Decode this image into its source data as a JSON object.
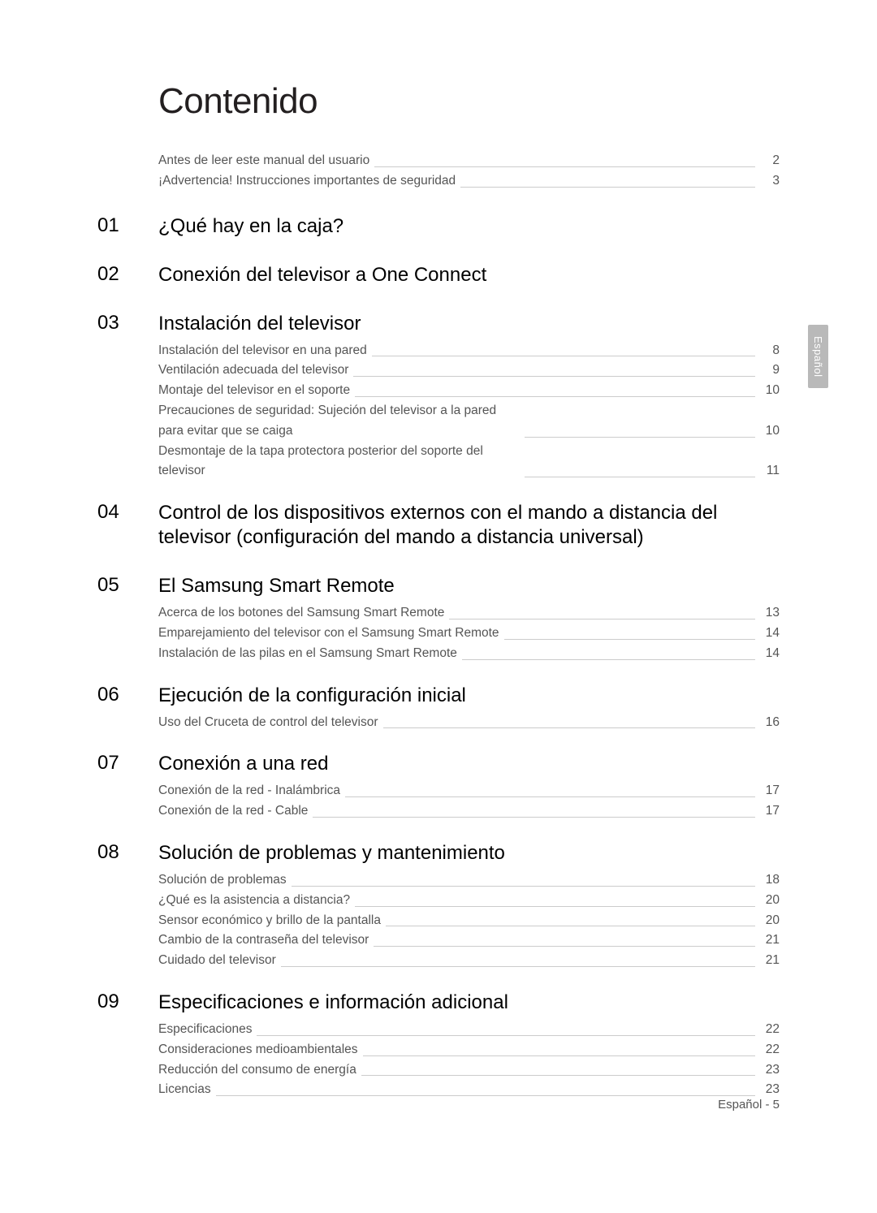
{
  "title": "Contenido",
  "side_tab": "Español",
  "footer": "Español - 5",
  "colors": {
    "text_primary": "#231f20",
    "text_secondary": "#555555",
    "leader_line": "#cccccc",
    "tab_bg": "#b9b9b9",
    "tab_text": "#ffffff",
    "background": "#ffffff"
  },
  "typography": {
    "title_fontsize": 44,
    "section_num_fontsize": 24,
    "section_title_fontsize": 24,
    "entry_fontsize": 15.5,
    "footer_fontsize": 15
  },
  "intro": [
    {
      "label": "Antes de leer este manual del usuario",
      "page": "2"
    },
    {
      "label": "¡Advertencia! Instrucciones importantes de seguridad",
      "page": "3"
    }
  ],
  "sections": [
    {
      "num": "01",
      "title": "¿Qué hay en la caja?",
      "entries": []
    },
    {
      "num": "02",
      "title": "Conexión del televisor a One Connect",
      "entries": []
    },
    {
      "num": "03",
      "title": "Instalación del televisor",
      "entries": [
        {
          "label": "Instalación del televisor en una pared",
          "page": "8"
        },
        {
          "label": "Ventilación adecuada del televisor",
          "page": "9"
        },
        {
          "label": "Montaje del televisor en el soporte",
          "page": "10"
        },
        {
          "label": "Precauciones de seguridad: Sujeción del televisor a la pared para evitar que se caiga",
          "page": "10"
        },
        {
          "label": "Desmontaje de la tapa protectora posterior del soporte del televisor",
          "page": "11"
        }
      ]
    },
    {
      "num": "04",
      "title": "Control de los dispositivos externos con el mando a distancia del televisor (configuración del mando a distancia universal)",
      "entries": []
    },
    {
      "num": "05",
      "title": "El Samsung Smart Remote",
      "entries": [
        {
          "label": "Acerca de los botones del Samsung Smart Remote",
          "page": "13"
        },
        {
          "label": "Emparejamiento del televisor con el Samsung Smart Remote",
          "page": "14"
        },
        {
          "label": "Instalación de las pilas en el Samsung Smart Remote",
          "page": "14"
        }
      ]
    },
    {
      "num": "06",
      "title": "Ejecución de la configuración inicial",
      "entries": [
        {
          "label": "Uso del Cruceta de control del televisor",
          "page": "16"
        }
      ]
    },
    {
      "num": "07",
      "title": "Conexión a una red",
      "entries": [
        {
          "label": "Conexión de la red - Inalámbrica",
          "page": "17"
        },
        {
          "label": "Conexión de la red - Cable",
          "page": "17"
        }
      ]
    },
    {
      "num": "08",
      "title": "Solución de problemas y mantenimiento",
      "entries": [
        {
          "label": "Solución de problemas",
          "page": "18"
        },
        {
          "label": "¿Qué es la asistencia a distancia?",
          "page": "20"
        },
        {
          "label": "Sensor económico y brillo de la pantalla",
          "page": "20"
        },
        {
          "label": "Cambio de la contraseña del televisor",
          "page": "21"
        },
        {
          "label": "Cuidado del televisor",
          "page": "21"
        }
      ]
    },
    {
      "num": "09",
      "title": "Especificaciones e información adicional",
      "entries": [
        {
          "label": "Especificaciones",
          "page": "22"
        },
        {
          "label": "Consideraciones medioambientales",
          "page": "22"
        },
        {
          "label": "Reducción del consumo de energía",
          "page": "23"
        },
        {
          "label": "Licencias",
          "page": "23"
        }
      ]
    }
  ]
}
